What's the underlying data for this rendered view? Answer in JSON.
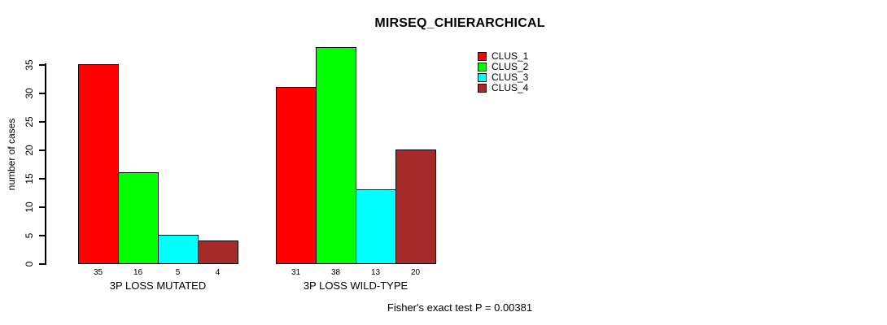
{
  "chart_data": {
    "type": "bar",
    "title": "MIRSEQ_CHIERARCHICAL",
    "categories": [
      "3P LOSS MUTATED",
      "3P LOSS WILD-TYPE"
    ],
    "series": [
      {
        "name": "CLUS_1",
        "color": "#ff0000",
        "values": [
          35,
          31
        ]
      },
      {
        "name": "CLUS_2",
        "color": "#00ff00",
        "values": [
          16,
          38
        ]
      },
      {
        "name": "CLUS_3",
        "color": "#00ffff",
        "values": [
          5,
          13
        ]
      },
      {
        "name": "CLUS_4",
        "color": "#a52a2a",
        "values": [
          4,
          20
        ]
      }
    ],
    "ylabel": "number of cases",
    "xlabel": "",
    "yticks": [
      0,
      5,
      10,
      15,
      20,
      25,
      30,
      35
    ],
    "ylim": [
      0,
      38
    ],
    "grid": false,
    "legend_position": "top-right",
    "bar_value_labels_shown": true,
    "annotation": "Fisher's exact test P = 0.00381",
    "axis_color": "#000000",
    "background_color": "#ffffff"
  }
}
